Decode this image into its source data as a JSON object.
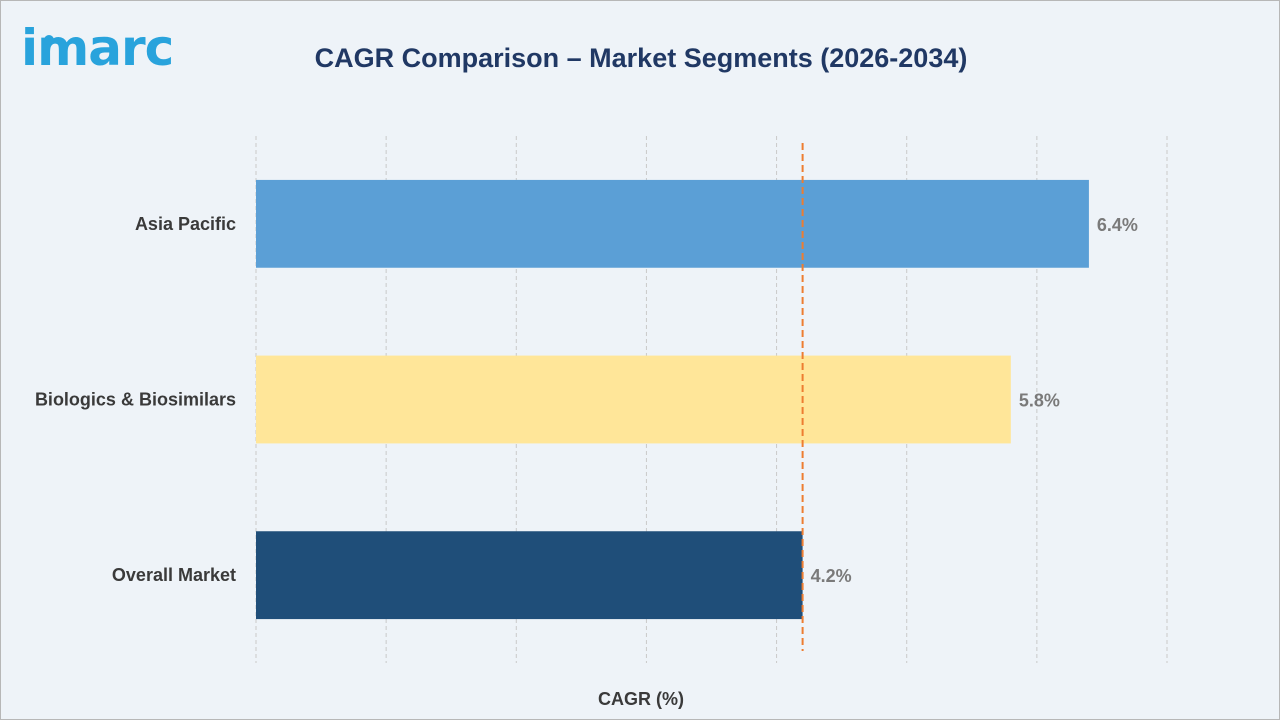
{
  "brand": {
    "logo_text": "imarc",
    "logo_color": "#29a3dc",
    "title_color": "#203864"
  },
  "chart_data": {
    "type": "bar",
    "orientation": "horizontal",
    "title": "CAGR Comparison – Market Segments (2026-2034)",
    "xlabel": "CAGR (%)",
    "ylabel": "",
    "categories": [
      "Asia Pacific",
      "Biologics & Biosimilars",
      "Overall Market"
    ],
    "values": [
      6.4,
      5.8,
      4.2
    ],
    "value_labels": [
      "6.4%",
      "5.8%",
      "4.2%"
    ],
    "colors": [
      "#5b9fd6",
      "#ffe699",
      "#1f4e79"
    ],
    "xlim": [
      0,
      7
    ],
    "grid": "vertical dashed",
    "reference_line": {
      "value": 4.2,
      "style": "dashed",
      "color": "#ed7d31"
    },
    "tick_labels_shown": false
  }
}
